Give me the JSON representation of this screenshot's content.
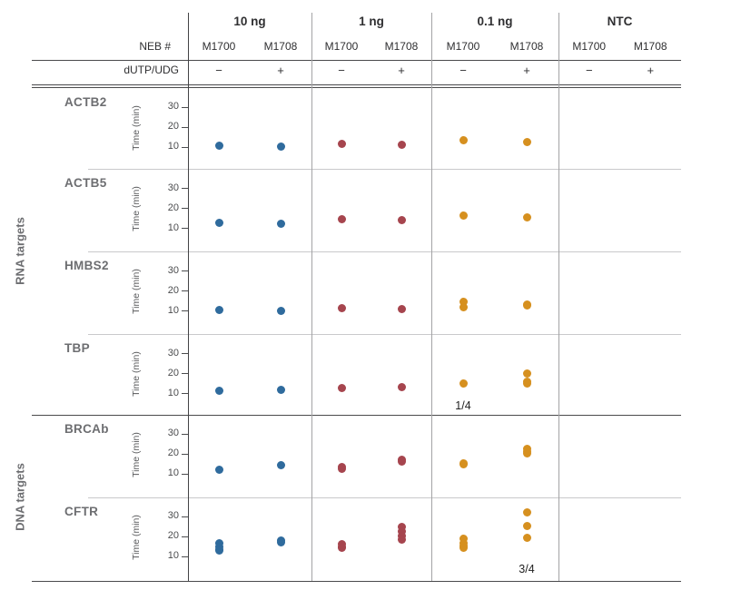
{
  "figure": {
    "header": {
      "neb_label": "NEB #",
      "dutp_label": "dUTP/UDG"
    },
    "sections": [
      {
        "label": "RNA targets",
        "targets": [
          "ACTB2",
          "ACTB5",
          "HMBS2",
          "TBP"
        ]
      },
      {
        "label": "DNA targets",
        "targets": [
          "BRCAb",
          "CFTR"
        ]
      }
    ]
  },
  "chart_data": {
    "type": "scatter",
    "ylabel": "Time (min)",
    "yticks": [
      30,
      20,
      10
    ],
    "ylim": [
      0,
      38
    ],
    "groups": [
      "10 ng",
      "1 ng",
      "0.1 ng",
      "NTC"
    ],
    "group_signs": [
      "−",
      "+"
    ],
    "columns": [
      "M1700",
      "M1708"
    ],
    "group_colors": [
      "#2f6b9d",
      "#a6454e",
      "#d6901f",
      null
    ],
    "rows": [
      {
        "target": "ACTB2",
        "section": "RNA targets",
        "values": [
          [
            [
              10.5
            ],
            [
              10.0
            ]
          ],
          [
            [
              11.5
            ],
            [
              11.0
            ]
          ],
          [
            [
              13.0
            ],
            [
              12.3
            ]
          ],
          [
            [],
            []
          ]
        ]
      },
      {
        "target": "ACTB5",
        "section": "RNA targets",
        "values": [
          [
            [
              12.5
            ],
            [
              12.0
            ]
          ],
          [
            [
              14.3
            ],
            [
              13.8
            ]
          ],
          [
            [
              16.0
            ],
            [
              15.3
            ]
          ],
          [
            [],
            []
          ]
        ]
      },
      {
        "target": "HMBS2",
        "section": "RNA targets",
        "values": [
          [
            [
              10.2
            ],
            [
              9.8
            ]
          ],
          [
            [
              11.2
            ],
            [
              10.8
            ]
          ],
          [
            [
              14.5,
              11.5
            ],
            [
              13.2,
              12.5
            ]
          ],
          [
            [],
            []
          ]
        ]
      },
      {
        "target": "TBP",
        "section": "RNA targets",
        "values": [
          [
            [
              11.2
            ],
            [
              11.6
            ]
          ],
          [
            [
              12.3
            ],
            [
              12.9
            ]
          ],
          [
            [
              15.0
            ],
            [
              20.0,
              15.8,
              14.8
            ]
          ],
          [
            [],
            []
          ]
        ]
      },
      {
        "target": "BRCAb",
        "section": "DNA targets",
        "values": [
          [
            [
              11.8
            ],
            [
              14.0
            ]
          ],
          [
            [
              13.2,
              12.4
            ],
            [
              17.0,
              15.8
            ]
          ],
          [
            [
              15.2,
              14.4
            ],
            [
              22.2,
              21.0,
              20.0
            ]
          ],
          [
            [],
            []
          ]
        ]
      },
      {
        "target": "CFTR",
        "section": "DNA targets",
        "values": [
          [
            [
              16.5,
              14.8,
              13.2,
              12.6
            ],
            [
              17.6,
              16.9
            ]
          ],
          [
            [
              15.8,
              14.6,
              13.9
            ],
            [
              24.6,
              22.4,
              20.3,
              18.4
            ]
          ],
          [
            [
              18.6,
              16.2,
              15.0,
              14.2
            ],
            [
              32.0,
              25.0,
              19.0
            ]
          ],
          [
            [],
            []
          ]
        ]
      }
    ],
    "annotations": [
      {
        "row": "TBP",
        "group_index": 2,
        "column_index": 0,
        "label": "1/4"
      },
      {
        "row": "CFTR",
        "group_index": 2,
        "column_index": 1,
        "label": "3/4"
      }
    ]
  }
}
